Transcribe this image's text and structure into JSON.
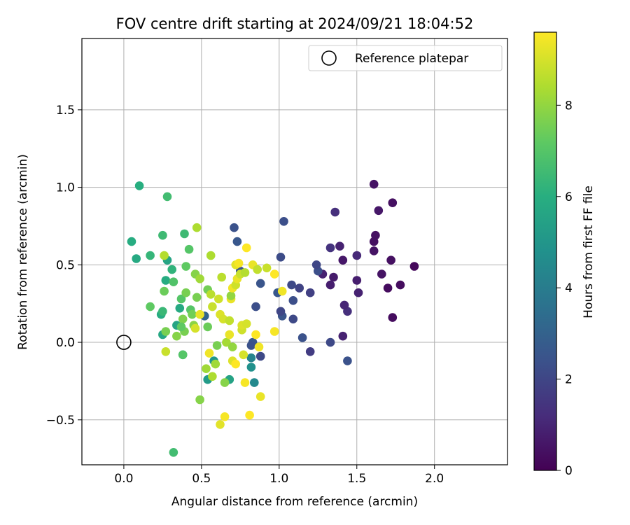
{
  "chart_data": {
    "type": "scatter",
    "title": "FOV centre drift starting at 2024/09/21 18:04:52",
    "xlabel": "Angular distance from reference (arcmin)",
    "ylabel": "Rotation from reference (arcmin)",
    "xlim": [
      -0.27,
      2.47
    ],
    "ylim": [
      -0.79,
      1.96
    ],
    "xticks": [
      0.0,
      0.5,
      1.0,
      1.5,
      2.0
    ],
    "xtick_labels": [
      "0.0",
      "0.5",
      "1.0",
      "1.5",
      "2.0"
    ],
    "yticks": [
      -0.5,
      0.0,
      0.5,
      1.0,
      1.5
    ],
    "ytick_labels": [
      "−0.5",
      "0.0",
      "0.5",
      "1.0",
      "1.5"
    ],
    "grid": true,
    "legend": {
      "placement": "top-right",
      "entries": [
        "Reference platepar"
      ]
    },
    "reference_point": {
      "x": 0.0,
      "y": 0.0,
      "label": "Reference platepar"
    },
    "colorbar": {
      "label": "Hours from first FF file",
      "colormap": "viridis",
      "min": 0,
      "max": 9.6,
      "ticks": [
        0,
        2,
        4,
        6,
        8
      ],
      "tick_labels": [
        "0",
        "2",
        "4",
        "6",
        "8"
      ]
    },
    "points": [
      {
        "x": 1.87,
        "y": 0.49,
        "t": 0.2
      },
      {
        "x": 1.78,
        "y": 0.37,
        "t": 0.3
      },
      {
        "x": 1.73,
        "y": 0.9,
        "t": 0.4
      },
      {
        "x": 1.72,
        "y": 0.53,
        "t": 0.4
      },
      {
        "x": 1.73,
        "y": 0.16,
        "t": 0.3
      },
      {
        "x": 1.7,
        "y": 0.35,
        "t": 0.3
      },
      {
        "x": 1.66,
        "y": 0.44,
        "t": 0.5
      },
      {
        "x": 1.64,
        "y": 0.85,
        "t": 0.6
      },
      {
        "x": 1.62,
        "y": 0.69,
        "t": 0.4
      },
      {
        "x": 1.61,
        "y": 1.02,
        "t": 0.5
      },
      {
        "x": 1.61,
        "y": 0.65,
        "t": 0.4
      },
      {
        "x": 1.61,
        "y": 0.59,
        "t": 0.5
      },
      {
        "x": 1.51,
        "y": 0.32,
        "t": 0.9
      },
      {
        "x": 1.5,
        "y": 0.4,
        "t": 0.8
      },
      {
        "x": 1.5,
        "y": 0.56,
        "t": 1.1
      },
      {
        "x": 1.44,
        "y": 0.2,
        "t": 1.3
      },
      {
        "x": 1.42,
        "y": 0.24,
        "t": 1.0
      },
      {
        "x": 1.41,
        "y": 0.53,
        "t": 0.6
      },
      {
        "x": 1.41,
        "y": 0.04,
        "t": 0.9
      },
      {
        "x": 1.39,
        "y": 0.62,
        "t": 0.9
      },
      {
        "x": 1.36,
        "y": 0.84,
        "t": 1.3
      },
      {
        "x": 1.35,
        "y": 0.42,
        "t": 0.7
      },
      {
        "x": 1.33,
        "y": 0.61,
        "t": 1.4
      },
      {
        "x": 1.33,
        "y": 0.37,
        "t": 0.8
      },
      {
        "x": 1.28,
        "y": 0.44,
        "t": 0.9
      },
      {
        "x": 1.25,
        "y": 0.46,
        "t": 2.3
      },
      {
        "x": 1.24,
        "y": 0.5,
        "t": 2.0
      },
      {
        "x": 1.33,
        "y": 0.0,
        "t": 2.1
      },
      {
        "x": 1.44,
        "y": -0.12,
        "t": 2.4
      },
      {
        "x": 1.2,
        "y": 0.32,
        "t": 1.8
      },
      {
        "x": 1.2,
        "y": -0.06,
        "t": 1.7
      },
      {
        "x": 1.15,
        "y": 0.03,
        "t": 2.4
      },
      {
        "x": 1.13,
        "y": 0.35,
        "t": 1.9
      },
      {
        "x": 1.09,
        "y": 0.27,
        "t": 2.3
      },
      {
        "x": 1.08,
        "y": 0.37,
        "t": 2.1
      },
      {
        "x": 1.09,
        "y": 0.15,
        "t": 2.1
      },
      {
        "x": 1.03,
        "y": 0.78,
        "t": 2.3
      },
      {
        "x": 1.02,
        "y": 0.17,
        "t": 2.5
      },
      {
        "x": 1.01,
        "y": 0.55,
        "t": 2.2
      },
      {
        "x": 1.01,
        "y": 0.2,
        "t": 2.0
      },
      {
        "x": 0.99,
        "y": 0.32,
        "t": 2.6
      },
      {
        "x": 0.88,
        "y": 0.38,
        "t": 2.5
      },
      {
        "x": 0.85,
        "y": 0.23,
        "t": 2.3
      },
      {
        "x": 0.88,
        "y": -0.09,
        "t": 2.1
      },
      {
        "x": 0.83,
        "y": 0.0,
        "t": 2.6
      },
      {
        "x": 0.82,
        "y": -0.02,
        "t": 2.4
      },
      {
        "x": 0.71,
        "y": 0.74,
        "t": 2.4
      },
      {
        "x": 0.73,
        "y": 0.65,
        "t": 2.6
      },
      {
        "x": 0.75,
        "y": 0.46,
        "t": 2.5
      },
      {
        "x": 0.52,
        "y": 0.17,
        "t": 3.1
      },
      {
        "x": 0.82,
        "y": -0.1,
        "t": 4.3
      },
      {
        "x": 0.82,
        "y": -0.16,
        "t": 4.8
      },
      {
        "x": 0.84,
        "y": -0.26,
        "t": 4.5
      },
      {
        "x": 0.68,
        "y": -0.24,
        "t": 5.5
      },
      {
        "x": 0.54,
        "y": -0.24,
        "t": 5.2
      },
      {
        "x": 0.58,
        "y": -0.12,
        "t": 5.0
      },
      {
        "x": 0.38,
        "y": -0.08,
        "t": 4.6
      },
      {
        "x": 0.34,
        "y": 0.11,
        "t": 5.6
      },
      {
        "x": 0.36,
        "y": 0.22,
        "t": 5.8
      },
      {
        "x": 0.24,
        "y": 0.18,
        "t": 5.9
      },
      {
        "x": 0.25,
        "y": 0.05,
        "t": 5.7
      },
      {
        "x": 0.27,
        "y": 0.4,
        "t": 5.9
      },
      {
        "x": 0.31,
        "y": 0.47,
        "t": 6.2
      },
      {
        "x": 0.28,
        "y": 0.53,
        "t": 5.6
      },
      {
        "x": 0.25,
        "y": 0.2,
        "t": 6.4
      },
      {
        "x": 0.05,
        "y": 0.65,
        "t": 5.9
      },
      {
        "x": 0.08,
        "y": 0.54,
        "t": 5.8
      },
      {
        "x": 0.1,
        "y": 1.01,
        "t": 6.0
      },
      {
        "x": 0.17,
        "y": 0.56,
        "t": 6.3
      },
      {
        "x": 0.25,
        "y": 0.69,
        "t": 6.5
      },
      {
        "x": 0.28,
        "y": 0.94,
        "t": 6.6
      },
      {
        "x": 0.39,
        "y": 0.7,
        "t": 6.5
      },
      {
        "x": 0.42,
        "y": 0.6,
        "t": 7.0
      },
      {
        "x": 0.4,
        "y": 0.49,
        "t": 7.2
      },
      {
        "x": 0.32,
        "y": 0.39,
        "t": 6.9
      },
      {
        "x": 0.17,
        "y": 0.23,
        "t": 7.2
      },
      {
        "x": 0.26,
        "y": 0.33,
        "t": 7.4
      },
      {
        "x": 0.37,
        "y": 0.28,
        "t": 7.0
      },
      {
        "x": 0.4,
        "y": 0.32,
        "t": 7.6
      },
      {
        "x": 0.43,
        "y": 0.21,
        "t": 7.0
      },
      {
        "x": 0.44,
        "y": 0.18,
        "t": 7.5
      },
      {
        "x": 0.38,
        "y": 0.15,
        "t": 7.7
      },
      {
        "x": 0.39,
        "y": 0.07,
        "t": 7.6
      },
      {
        "x": 0.37,
        "y": 0.1,
        "t": 7.2
      },
      {
        "x": 0.27,
        "y": 0.07,
        "t": 7.6
      },
      {
        "x": 0.34,
        "y": 0.04,
        "t": 7.8
      },
      {
        "x": 0.38,
        "y": -0.08,
        "t": 7.0
      },
      {
        "x": 0.47,
        "y": 0.29,
        "t": 7.6
      },
      {
        "x": 0.45,
        "y": 0.11,
        "t": 7.9
      },
      {
        "x": 0.46,
        "y": 0.44,
        "t": 7.8
      },
      {
        "x": 0.47,
        "y": 0.74,
        "t": 8.4
      },
      {
        "x": 0.49,
        "y": 0.41,
        "t": 8.2
      },
      {
        "x": 0.26,
        "y": 0.56,
        "t": 8.5
      },
      {
        "x": 0.27,
        "y": -0.06,
        "t": 8.8
      },
      {
        "x": 0.32,
        "y": -0.71,
        "t": 6.6
      },
      {
        "x": 0.49,
        "y": -0.37,
        "t": 7.8
      },
      {
        "x": 0.53,
        "y": -0.17,
        "t": 8.2
      },
      {
        "x": 0.54,
        "y": 0.1,
        "t": 7.4
      },
      {
        "x": 0.54,
        "y": 0.34,
        "t": 7.5
      },
      {
        "x": 0.56,
        "y": 0.31,
        "t": 8.6
      },
      {
        "x": 0.56,
        "y": 0.56,
        "t": 8.4
      },
      {
        "x": 0.57,
        "y": 0.23,
        "t": 8.8
      },
      {
        "x": 0.59,
        "y": -0.14,
        "t": 8.2
      },
      {
        "x": 0.57,
        "y": -0.22,
        "t": 8.4
      },
      {
        "x": 0.6,
        "y": -0.02,
        "t": 7.6
      },
      {
        "x": 0.61,
        "y": 0.28,
        "t": 8.9
      },
      {
        "x": 0.62,
        "y": 0.18,
        "t": 9.1
      },
      {
        "x": 0.63,
        "y": 0.42,
        "t": 8.6
      },
      {
        "x": 0.64,
        "y": 0.15,
        "t": 9.0
      },
      {
        "x": 0.65,
        "y": -0.26,
        "t": 7.8
      },
      {
        "x": 0.66,
        "y": 0.0,
        "t": 8.3
      },
      {
        "x": 0.68,
        "y": 0.14,
        "t": 8.7
      },
      {
        "x": 0.69,
        "y": 0.28,
        "t": 9.3
      },
      {
        "x": 0.69,
        "y": 0.3,
        "t": 8.0
      },
      {
        "x": 0.7,
        "y": 0.35,
        "t": 9.4
      },
      {
        "x": 0.7,
        "y": -0.03,
        "t": 8.0
      },
      {
        "x": 0.72,
        "y": 0.37,
        "t": 8.9
      },
      {
        "x": 0.72,
        "y": 0.5,
        "t": 9.2
      },
      {
        "x": 0.73,
        "y": 0.41,
        "t": 9.3
      },
      {
        "x": 0.74,
        "y": 0.51,
        "t": 9.5
      },
      {
        "x": 0.75,
        "y": 0.44,
        "t": 8.8
      },
      {
        "x": 0.76,
        "y": 0.08,
        "t": 8.9
      },
      {
        "x": 0.76,
        "y": 0.11,
        "t": 9.1
      },
      {
        "x": 0.77,
        "y": -0.08,
        "t": 9.0
      },
      {
        "x": 0.78,
        "y": 0.45,
        "t": 8.5
      },
      {
        "x": 0.78,
        "y": -0.26,
        "t": 9.5
      },
      {
        "x": 0.79,
        "y": 0.12,
        "t": 9.0
      },
      {
        "x": 0.79,
        "y": 0.61,
        "t": 9.6
      },
      {
        "x": 0.81,
        "y": -0.47,
        "t": 9.6
      },
      {
        "x": 0.83,
        "y": 0.5,
        "t": 9.3
      },
      {
        "x": 0.85,
        "y": 0.05,
        "t": 9.6
      },
      {
        "x": 0.86,
        "y": 0.47,
        "t": 8.7
      },
      {
        "x": 0.87,
        "y": -0.03,
        "t": 9.4
      },
      {
        "x": 0.88,
        "y": -0.35,
        "t": 9.3
      },
      {
        "x": 0.92,
        "y": 0.48,
        "t": 8.8
      },
      {
        "x": 0.97,
        "y": 0.44,
        "t": 9.6
      },
      {
        "x": 0.97,
        "y": 0.07,
        "t": 9.5
      },
      {
        "x": 1.02,
        "y": 0.33,
        "t": 9.4
      },
      {
        "x": 0.62,
        "y": -0.53,
        "t": 9.2
      },
      {
        "x": 0.65,
        "y": -0.48,
        "t": 9.5
      },
      {
        "x": 0.68,
        "y": 0.05,
        "t": 9.3
      },
      {
        "x": 0.7,
        "y": -0.12,
        "t": 9.1
      },
      {
        "x": 0.72,
        "y": -0.14,
        "t": 9.6
      },
      {
        "x": 0.55,
        "y": -0.07,
        "t": 9.4
      },
      {
        "x": 0.49,
        "y": 0.18,
        "t": 9.3
      },
      {
        "x": 0.46,
        "y": 0.09,
        "t": 9.0
      }
    ]
  }
}
